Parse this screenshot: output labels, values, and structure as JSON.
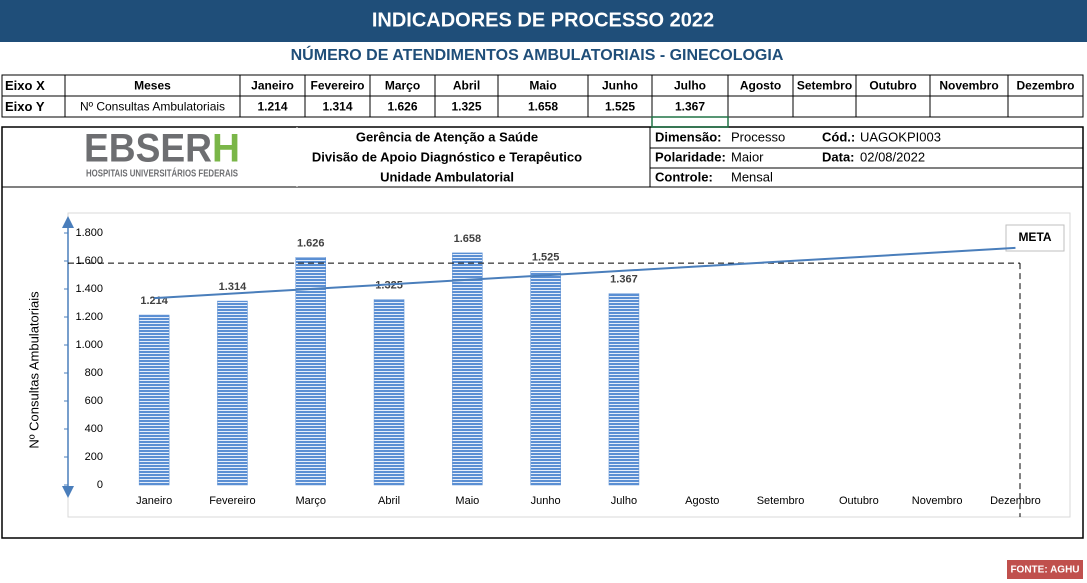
{
  "title": "INDICADORES DE PROCESSO 2022",
  "subtitle": "NÚMERO DE ATENDIMENTOS AMBULATORIAIS - GINECOLOGIA",
  "table": {
    "row_x": "Eixo X",
    "row_y": "Eixo Y",
    "months_header": "Meses"
  },
  "logo": {
    "main": "EBSER",
    "accent": "H",
    "tagline": "HOSPITAIS UNIVERSITÁRIOS FEDERAIS"
  },
  "unit": [
    "Gerência de Atenção a Saúde",
    "Divisão de Apoio Diagnóstico e Terapêutico",
    "Unidade Ambulatorial"
  ],
  "info": [
    {
      "label": "Dimensão:",
      "value": "Processo",
      "label2": "Cód.:",
      "value2": "UAGOKPI003"
    },
    {
      "label": "Polaridade:",
      "value": "Maior",
      "label2": "Data:",
      "value2": "02/08/2022"
    },
    {
      "label": "Controle:",
      "value": "Mensal"
    }
  ],
  "footer": "FONTE: AGHU",
  "chart_data": {
    "type": "bar",
    "ylabel": "Nº Consultas Ambulatoriais",
    "categories": [
      "Janeiro",
      "Fevereiro",
      "Março",
      "Abril",
      "Maio",
      "Junho",
      "Julho",
      "Agosto",
      "Setembro",
      "Outubro",
      "Novembro",
      "Dezembro"
    ],
    "values": [
      1214,
      1314,
      1626,
      1325,
      1658,
      1525,
      1367,
      null,
      null,
      null,
      null,
      null
    ],
    "value_labels": [
      "1.214",
      "1.314",
      "1.626",
      "1.325",
      "1.658",
      "1.525",
      "1.367",
      null,
      null,
      null,
      null,
      null
    ],
    "color": "#5b8fd3",
    "ylim": [
      0,
      1800
    ],
    "yticks": [
      0,
      200,
      400,
      600,
      800,
      {
        "value": 1000,
        "label": "1.000"
      },
      {
        "value": 1200,
        "label": "1.200"
      },
      {
        "value": 1400,
        "label": "1.400"
      },
      {
        "value": 1600,
        "label": "1.600"
      },
      {
        "value": 1800,
        "label": "1.800"
      }
    ],
    "trendline": "linear",
    "trend_color": "#4a7ebb",
    "meta": {
      "label": "META",
      "value": 1585
    }
  }
}
